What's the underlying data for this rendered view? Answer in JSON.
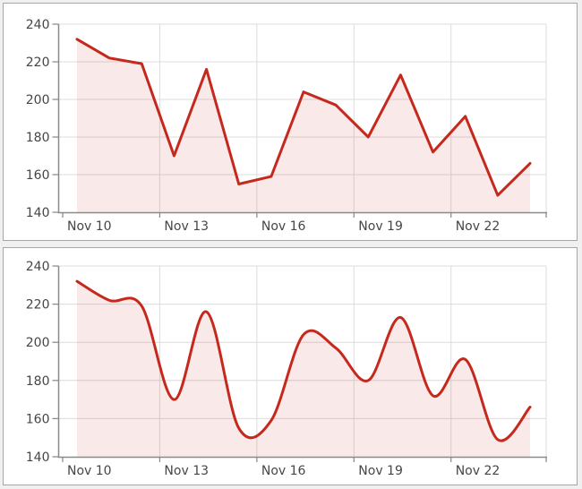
{
  "page": {
    "background_color": "#f0f0f0",
    "panel_background_color": "#ffffff",
    "panel_border_color": "#a6a6a6"
  },
  "chart_data": [
    {
      "panel": "top",
      "type": "area",
      "interpolation": "linear",
      "x": [
        "Nov 10",
        "Nov 11",
        "Nov 12",
        "Nov 13",
        "Nov 14",
        "Nov 15",
        "Nov 16",
        "Nov 17",
        "Nov 18",
        "Nov 19",
        "Nov 20",
        "Nov 21",
        "Nov 22",
        "Nov 23",
        "Nov 24"
      ],
      "values": [
        232,
        222,
        219,
        170,
        216,
        155,
        159,
        204,
        197,
        180,
        213,
        172,
        191,
        149,
        166
      ],
      "x_tick_labels": [
        "Nov 10",
        "Nov 13",
        "Nov 16",
        "Nov 19",
        "Nov 22"
      ],
      "x_tick_indices": [
        0,
        3,
        6,
        9,
        12
      ],
      "y_ticks": [
        140,
        160,
        180,
        200,
        220,
        240
      ],
      "ylim": [
        140,
        240
      ],
      "grid": true,
      "legend": false,
      "colors": {
        "line": "#c5291d",
        "fill": "rgba(197,41,29,0.10)",
        "axis": "#8a8a8a",
        "grid": "#dcdcdc",
        "label": "#464646"
      }
    },
    {
      "panel": "bottom",
      "type": "area",
      "interpolation": "spline",
      "x": [
        "Nov 10",
        "Nov 11",
        "Nov 12",
        "Nov 13",
        "Nov 14",
        "Nov 15",
        "Nov 16",
        "Nov 17",
        "Nov 18",
        "Nov 19",
        "Nov 20",
        "Nov 21",
        "Nov 22",
        "Nov 23",
        "Nov 24"
      ],
      "values": [
        232,
        222,
        219,
        170,
        216,
        155,
        159,
        204,
        197,
        180,
        213,
        172,
        191,
        149,
        166
      ],
      "x_tick_labels": [
        "Nov 10",
        "Nov 13",
        "Nov 16",
        "Nov 19",
        "Nov 22"
      ],
      "x_tick_indices": [
        0,
        3,
        6,
        9,
        12
      ],
      "y_ticks": [
        140,
        160,
        180,
        200,
        220,
        240
      ],
      "ylim": [
        140,
        240
      ],
      "grid": true,
      "legend": false,
      "colors": {
        "line": "#c5291d",
        "fill": "rgba(197,41,29,0.10)",
        "axis": "#8a8a8a",
        "grid": "#dcdcdc",
        "label": "#464646"
      }
    }
  ]
}
